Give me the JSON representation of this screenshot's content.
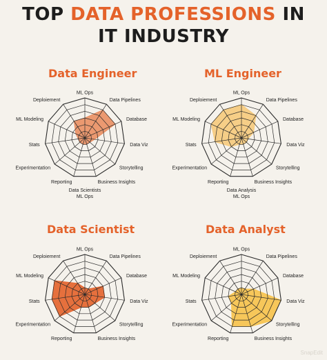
{
  "header": {
    "title_line1_prefix": "TOP ",
    "title_line1_accent": "DATA PROFESSIONS",
    "title_line1_suffix": " IN",
    "title_line2": "IT INDUSTRY"
  },
  "watermark": "SnapEdit",
  "colors": {
    "accent": "#e4622a",
    "grid": "#2a2a2a"
  },
  "chart_data": [
    {
      "type": "radar",
      "title": "Data Engineer",
      "color": "#e9895a",
      "fill_opacity": 0.85,
      "axes": [
        "ML Ops",
        "Data Pipelines",
        "Database",
        "Data Viz",
        "Storytelling",
        "Business Insights",
        "Reporting",
        "Experimentation",
        "Stats",
        "ML Modeling",
        "Deploiement"
      ],
      "rings": 6,
      "values": [
        3,
        5,
        5,
        1.5,
        1,
        1,
        1,
        1,
        1,
        1.5,
        3
      ],
      "footer": [
        "Data Scientists",
        "ML Ops"
      ]
    },
    {
      "type": "radar",
      "title": "ML Engineer",
      "color": "#f6c876",
      "fill_opacity": 0.85,
      "axes": [
        "ML Ops",
        "Data Pipelines",
        "Database",
        "Data Viz",
        "Storytelling",
        "Business Insights",
        "Reporting",
        "Experimentation",
        "Stats",
        "ML Modeling",
        "Deploiement"
      ],
      "rings": 6,
      "values": [
        5,
        4,
        2,
        1,
        1,
        1,
        1,
        2,
        4,
        5,
        5
      ],
      "footer": [
        "Data Analysis",
        "ML Ops"
      ]
    },
    {
      "type": "radar",
      "title": "Data Scientist",
      "color": "#e4622a",
      "fill_opacity": 0.9,
      "axes": [
        "ML Ops",
        "Data Pipelines",
        "Database",
        "Data Viz",
        "Storytelling",
        "Business Insights",
        "Reporting",
        "Experimentation",
        "Stats",
        "ML Modeling",
        "Deploiement"
      ],
      "rings": 6,
      "values": [
        1,
        1,
        3,
        3,
        2,
        2,
        2,
        5,
        5,
        5,
        2
      ],
      "footer": []
    },
    {
      "type": "radar",
      "title": "Data Analyst",
      "color": "#f7c24a",
      "fill_opacity": 0.9,
      "axes": [
        "ML Ops",
        "Data Pipelines",
        "Database",
        "Data Viz",
        "Storytelling",
        "Business Insights",
        "Reporting",
        "Experimentation",
        "Stats",
        "ML Modeling",
        "Deploiement"
      ],
      "rings": 6,
      "values": [
        1,
        1,
        2,
        6,
        6,
        5,
        5,
        2,
        2,
        1,
        1
      ],
      "footer": []
    }
  ]
}
